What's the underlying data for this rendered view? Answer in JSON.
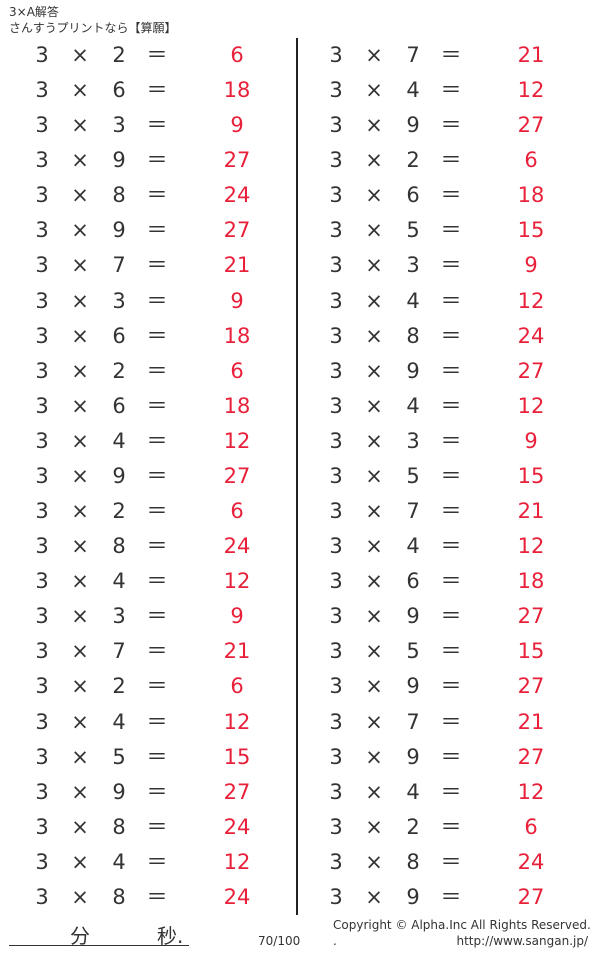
{
  "header": {
    "title": "3×A解答",
    "subtitle": "さんすうプリントなら【算願】"
  },
  "colors": {
    "answer": "#e8203a",
    "text": "#333333"
  },
  "operator": "×",
  "equals": "＝",
  "columns": [
    {
      "rows": [
        {
          "a": "3",
          "b": "2",
          "answer": "6"
        },
        {
          "a": "3",
          "b": "6",
          "answer": "18"
        },
        {
          "a": "3",
          "b": "3",
          "answer": "9"
        },
        {
          "a": "3",
          "b": "9",
          "answer": "27"
        },
        {
          "a": "3",
          "b": "8",
          "answer": "24"
        },
        {
          "a": "3",
          "b": "9",
          "answer": "27"
        },
        {
          "a": "3",
          "b": "7",
          "answer": "21"
        },
        {
          "a": "3",
          "b": "3",
          "answer": "9"
        },
        {
          "a": "3",
          "b": "6",
          "answer": "18"
        },
        {
          "a": "3",
          "b": "2",
          "answer": "6"
        },
        {
          "a": "3",
          "b": "6",
          "answer": "18"
        },
        {
          "a": "3",
          "b": "4",
          "answer": "12"
        },
        {
          "a": "3",
          "b": "9",
          "answer": "27"
        },
        {
          "a": "3",
          "b": "2",
          "answer": "6"
        },
        {
          "a": "3",
          "b": "8",
          "answer": "24"
        },
        {
          "a": "3",
          "b": "4",
          "answer": "12"
        },
        {
          "a": "3",
          "b": "3",
          "answer": "9"
        },
        {
          "a": "3",
          "b": "7",
          "answer": "21"
        },
        {
          "a": "3",
          "b": "2",
          "answer": "6"
        },
        {
          "a": "3",
          "b": "4",
          "answer": "12"
        },
        {
          "a": "3",
          "b": "5",
          "answer": "15"
        },
        {
          "a": "3",
          "b": "9",
          "answer": "27"
        },
        {
          "a": "3",
          "b": "8",
          "answer": "24"
        },
        {
          "a": "3",
          "b": "4",
          "answer": "12"
        },
        {
          "a": "3",
          "b": "8",
          "answer": "24"
        }
      ]
    },
    {
      "rows": [
        {
          "a": "3",
          "b": "7",
          "answer": "21"
        },
        {
          "a": "3",
          "b": "4",
          "answer": "12"
        },
        {
          "a": "3",
          "b": "9",
          "answer": "27"
        },
        {
          "a": "3",
          "b": "2",
          "answer": "6"
        },
        {
          "a": "3",
          "b": "6",
          "answer": "18"
        },
        {
          "a": "3",
          "b": "5",
          "answer": "15"
        },
        {
          "a": "3",
          "b": "3",
          "answer": "9"
        },
        {
          "a": "3",
          "b": "4",
          "answer": "12"
        },
        {
          "a": "3",
          "b": "8",
          "answer": "24"
        },
        {
          "a": "3",
          "b": "9",
          "answer": "27"
        },
        {
          "a": "3",
          "b": "4",
          "answer": "12"
        },
        {
          "a": "3",
          "b": "3",
          "answer": "9"
        },
        {
          "a": "3",
          "b": "5",
          "answer": "15"
        },
        {
          "a": "3",
          "b": "7",
          "answer": "21"
        },
        {
          "a": "3",
          "b": "4",
          "answer": "12"
        },
        {
          "a": "3",
          "b": "6",
          "answer": "18"
        },
        {
          "a": "3",
          "b": "9",
          "answer": "27"
        },
        {
          "a": "3",
          "b": "5",
          "answer": "15"
        },
        {
          "a": "3",
          "b": "9",
          "answer": "27"
        },
        {
          "a": "3",
          "b": "7",
          "answer": "21"
        },
        {
          "a": "3",
          "b": "9",
          "answer": "27"
        },
        {
          "a": "3",
          "b": "4",
          "answer": "12"
        },
        {
          "a": "3",
          "b": "2",
          "answer": "6"
        },
        {
          "a": "3",
          "b": "8",
          "answer": "24"
        },
        {
          "a": "3",
          "b": "9",
          "answer": "27"
        }
      ]
    }
  ],
  "footer": {
    "minutes_label": "分",
    "seconds_label": "秒.",
    "score": "70/100",
    "copyright": "Copyright ©  Alpha.Inc All Rights Reserved.",
    "dot": ".",
    "url": "http://www.sangan.jp/"
  }
}
